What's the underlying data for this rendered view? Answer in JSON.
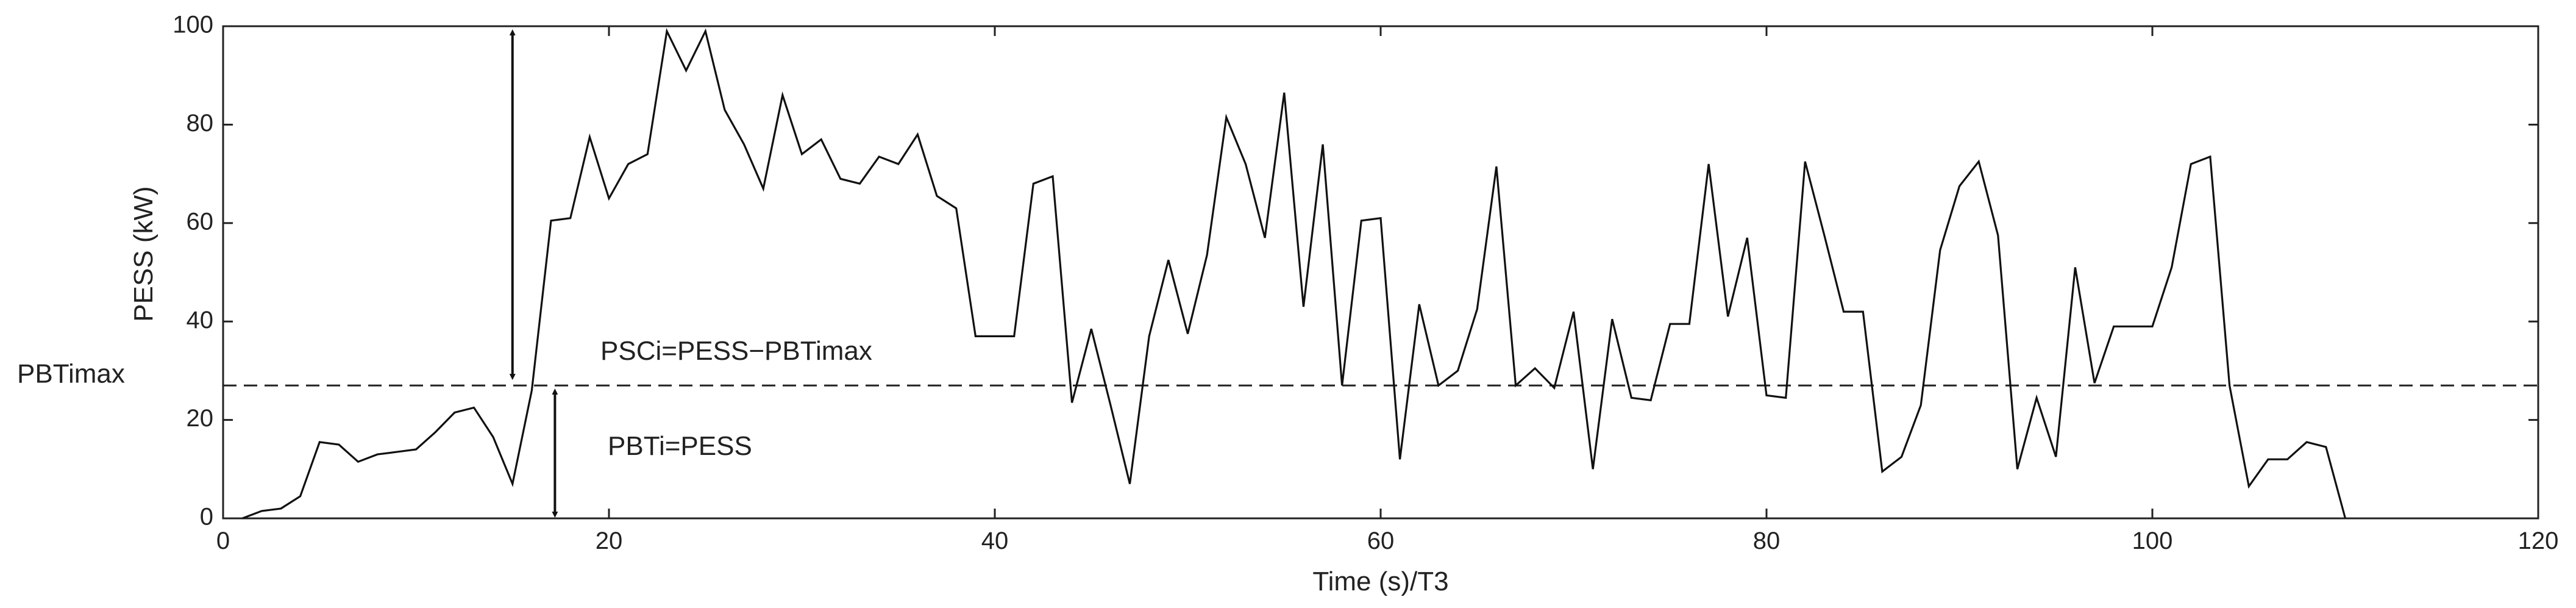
{
  "chart_data": {
    "type": "line",
    "title": "",
    "xlabel": "Time (s)/T3",
    "ylabel": "PESS (kW)",
    "xlim": [
      0,
      120
    ],
    "ylim": [
      0,
      100
    ],
    "xticks": [
      0,
      20,
      40,
      60,
      80,
      100,
      120
    ],
    "yticks": [
      0,
      20,
      40,
      60,
      80,
      100
    ],
    "grid": false,
    "series": [
      {
        "name": "",
        "color": "#111111",
        "x": [
          1,
          2,
          3,
          4,
          5,
          6,
          7,
          8,
          9,
          10,
          11,
          12,
          13,
          14,
          15,
          16,
          17,
          18,
          19,
          20,
          21,
          22,
          23,
          24,
          25,
          26,
          27,
          28,
          29,
          30,
          31,
          32,
          33,
          34,
          35,
          36,
          37,
          38,
          39,
          40,
          41,
          42,
          43,
          44,
          45,
          46,
          47,
          48,
          49,
          50,
          51,
          52,
          53,
          54,
          55,
          56,
          57,
          58,
          59,
          60,
          61,
          62,
          63,
          64,
          65,
          66,
          67,
          68,
          69,
          70,
          71,
          72,
          73,
          74,
          75,
          76,
          77,
          78,
          79,
          80,
          81,
          82,
          83,
          84,
          85,
          86,
          87,
          88,
          89,
          90,
          91,
          92,
          93,
          94,
          95,
          96,
          97,
          98,
          99,
          100,
          101,
          102,
          103,
          104,
          105,
          106,
          107,
          108,
          109,
          110
        ],
        "y": [
          0,
          1.5,
          2,
          4.5,
          15.5,
          15,
          11.5,
          13,
          13.5,
          14,
          17.5,
          21.5,
          22.5,
          16.5,
          7,
          26,
          60.5,
          61,
          77.5,
          65,
          72,
          74,
          99,
          91,
          99,
          83,
          76,
          67,
          86,
          74,
          77,
          69,
          68,
          73.5,
          72,
          78,
          65.5,
          63,
          37,
          37,
          37,
          68,
          69.5,
          23.5,
          38.5,
          23,
          7,
          37,
          52.5,
          37.5,
          53.5,
          81.5,
          72,
          57,
          86.5,
          43,
          76,
          27,
          60.5,
          61,
          12,
          43.5,
          27,
          30,
          42.5,
          71.5,
          27,
          30.5,
          26.5,
          42,
          10,
          40.5,
          24.5,
          24,
          39.5,
          39.5,
          72,
          41,
          57,
          25,
          24.5,
          72.5,
          57.5,
          42,
          42,
          9.5,
          12.5,
          23,
          54.5,
          67.5,
          72.5,
          57.5,
          10,
          24.5,
          12.5,
          51,
          27.5,
          39,
          39,
          39,
          51,
          72,
          73.5,
          27,
          6.5,
          12,
          12,
          15.5,
          14.5,
          0
        ]
      }
    ],
    "threshold": {
      "label": "PBTimax",
      "value": 27
    },
    "annotations": [
      {
        "text": "PSCi=PESS−PBTimax"
      },
      {
        "text": "PBTi=PESS"
      }
    ]
  }
}
